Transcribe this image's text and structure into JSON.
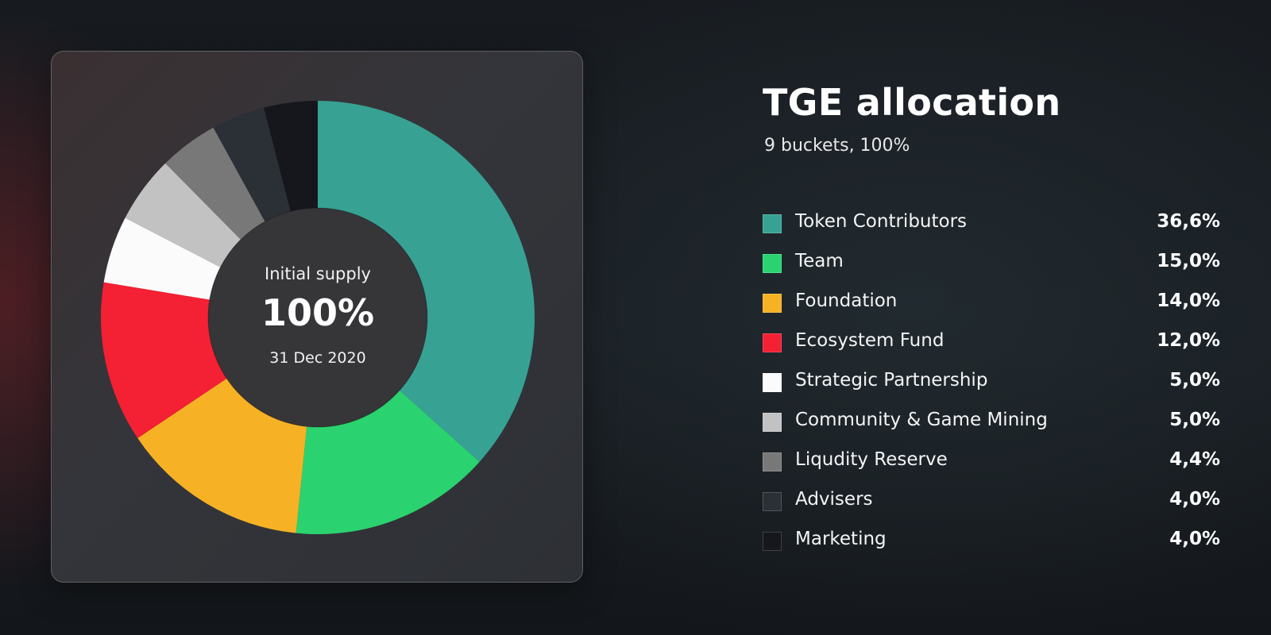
{
  "chart_data": {
    "type": "pie",
    "donut": true,
    "title": "TGE allocation",
    "subtitle": "9 buckets, 100%",
    "center": {
      "label": "Initial supply",
      "value": "100%",
      "date": "31 Dec 2020"
    },
    "legend_position": "right",
    "slices": [
      {
        "name": "Token Contributors",
        "value": 36.6,
        "label": "36,6%",
        "color": "#37a293"
      },
      {
        "name": "Team",
        "value": 15.0,
        "label": "15,0%",
        "color": "#2ad36f"
      },
      {
        "name": "Foundation",
        "value": 14.0,
        "label": "14,0%",
        "color": "#f6b224"
      },
      {
        "name": "Ecosystem Fund",
        "value": 12.0,
        "label": "12,0%",
        "color": "#f42033"
      },
      {
        "name": "Strategic Partnership",
        "value": 5.0,
        "label": "5,0%",
        "color": "#fbfbfb"
      },
      {
        "name": "Community & Game Mining",
        "value": 5.0,
        "label": "5,0%",
        "color": "#c2c2c2"
      },
      {
        "name": "Liqudity Reserve",
        "value": 4.4,
        "label": "4,4%",
        "color": "#787878"
      },
      {
        "name": "Advisers",
        "value": 4.0,
        "label": "4,0%",
        "color": "#2b2f36"
      },
      {
        "name": "Marketing",
        "value": 4.0,
        "label": "4,0%",
        "color": "#15171c"
      }
    ]
  }
}
